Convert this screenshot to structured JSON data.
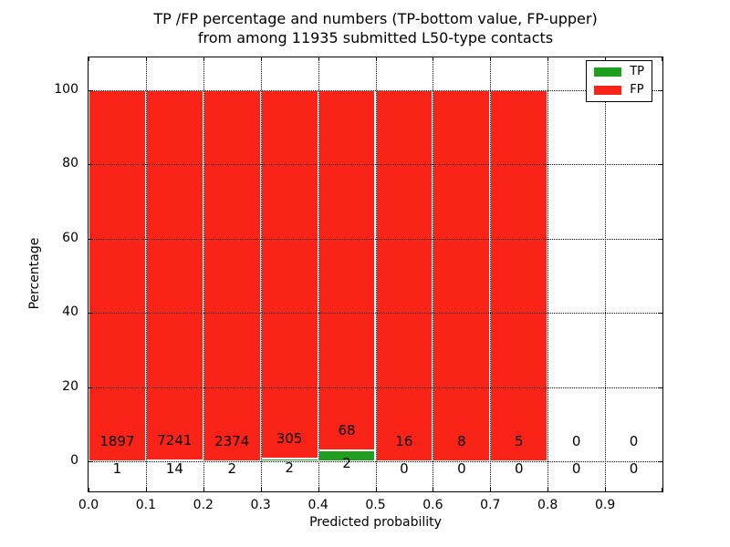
{
  "chart_data": {
    "type": "bar",
    "stacked": true,
    "title_lines": [
      "TP /FP percentage and numbers (TP-bottom value, FP-upper)",
      "from among 11935 submitted L50-type contacts"
    ],
    "total_submitted": 11935,
    "xlabel": "Predicted probability",
    "ylabel": "Percentage",
    "x_tick_labels": [
      "0.0",
      "0.1",
      "0.2",
      "0.3",
      "0.4",
      "0.5",
      "0.6",
      "0.7",
      "0.8",
      "0.9"
    ],
    "y_tick_values": [
      0,
      20,
      40,
      60,
      80,
      100
    ],
    "xlim": [
      0.0,
      1.0
    ],
    "ylim": [
      -8.4,
      109.1
    ],
    "grid_style": "dotted",
    "bar_unit": "percent of bin total (TP bottom + FP upper stacked to 100%)",
    "categories": [
      "0.0-0.1",
      "0.1-0.2",
      "0.2-0.3",
      "0.3-0.4",
      "0.4-0.5",
      "0.5-0.6",
      "0.6-0.7",
      "0.7-0.8",
      "0.8-0.9",
      "0.9-1.0"
    ],
    "series": [
      {
        "name": "TP",
        "color": "#1f9e1f",
        "counts": [
          1,
          14,
          2,
          2,
          2,
          0,
          0,
          0,
          0,
          0
        ]
      },
      {
        "name": "FP",
        "color": "#fa2318",
        "counts": [
          1897,
          7241,
          2374,
          305,
          68,
          16,
          8,
          5,
          0,
          0
        ]
      }
    ],
    "legend": {
      "position": "upper right",
      "entries": [
        {
          "label": "TP",
          "color": "#1f9e1f"
        },
        {
          "label": "FP",
          "color": "#fa2318"
        }
      ]
    },
    "colors": {
      "background": "#ffffff",
      "grid": "#000000",
      "bar_edge": "#ffffff",
      "text": "#000000"
    }
  }
}
